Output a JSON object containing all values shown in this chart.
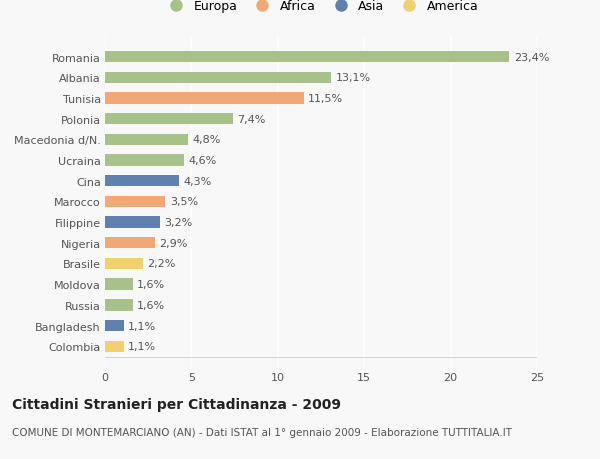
{
  "categories": [
    "Romania",
    "Albania",
    "Tunisia",
    "Polonia",
    "Macedonia d/N.",
    "Ucraina",
    "Cina",
    "Marocco",
    "Filippine",
    "Nigeria",
    "Brasile",
    "Moldova",
    "Russia",
    "Bangladesh",
    "Colombia"
  ],
  "values": [
    23.4,
    13.1,
    11.5,
    7.4,
    4.8,
    4.6,
    4.3,
    3.5,
    3.2,
    2.9,
    2.2,
    1.6,
    1.6,
    1.1,
    1.1
  ],
  "labels": [
    "23,4%",
    "13,1%",
    "11,5%",
    "7,4%",
    "4,8%",
    "4,6%",
    "4,3%",
    "3,5%",
    "3,2%",
    "2,9%",
    "2,2%",
    "1,6%",
    "1,6%",
    "1,1%",
    "1,1%"
  ],
  "colors": [
    "#a8c08a",
    "#a8c08a",
    "#f0a878",
    "#a8c08a",
    "#a8c08a",
    "#a8c08a",
    "#6080b0",
    "#f0a878",
    "#6080b0",
    "#f0a878",
    "#f0d070",
    "#a8c08a",
    "#a8c08a",
    "#6080b0",
    "#f0d070"
  ],
  "legend_labels": [
    "Europa",
    "Africa",
    "Asia",
    "America"
  ],
  "legend_colors": [
    "#a8c08a",
    "#f0a878",
    "#6080b0",
    "#f0d070"
  ],
  "xlim": [
    0,
    25
  ],
  "xticks": [
    0,
    5,
    10,
    15,
    20,
    25
  ],
  "title": "Cittadini Stranieri per Cittadinanza - 2009",
  "subtitle": "COMUNE DI MONTEMARCIANO (AN) - Dati ISTAT al 1° gennaio 2009 - Elaborazione TUTTITALIA.IT",
  "bg_color": "#f8f8f8",
  "bar_height": 0.55,
  "title_fontsize": 10,
  "subtitle_fontsize": 7.5,
  "label_fontsize": 8,
  "tick_fontsize": 8
}
